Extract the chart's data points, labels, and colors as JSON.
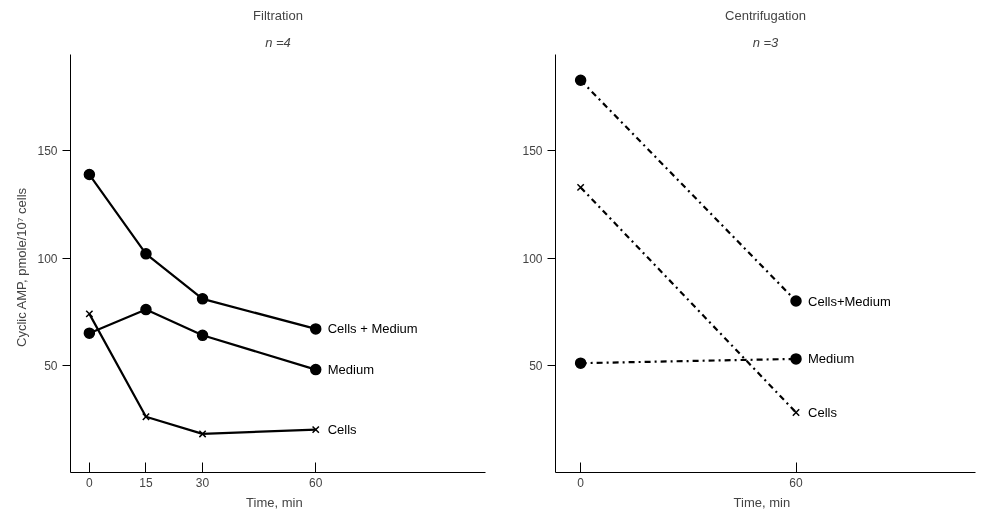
{
  "chart_data": [
    {
      "type": "line",
      "title": "Filtration",
      "subtitle": "n =4",
      "xlabel": "Time,   min",
      "ylabel": "Cyclic AMP,   pmole/10⁷ cells",
      "x": [
        0,
        15,
        30,
        60
      ],
      "xlim": [
        -5,
        105
      ],
      "ylim": [
        0,
        195
      ],
      "xticks": [
        0,
        15,
        30,
        60
      ],
      "yticks": [
        50,
        100,
        150
      ],
      "grid": false,
      "line_style": "solid",
      "series": [
        {
          "name": "Cells + Medium",
          "color": "#000000",
          "marker": "circle",
          "values": [
            139,
            102,
            81,
            67
          ]
        },
        {
          "name": "Medium",
          "color": "#000000",
          "marker": "circle",
          "values": [
            65,
            76,
            64,
            48
          ]
        },
        {
          "name": "Cells",
          "color": "#000000",
          "marker": "cross",
          "values": [
            74,
            26,
            18,
            20
          ]
        }
      ]
    },
    {
      "type": "line",
      "title": "Centrifugation",
      "subtitle": "n =3",
      "xlabel": "Time,   min",
      "x": [
        0,
        60
      ],
      "xlim": [
        -7,
        110
      ],
      "ylim": [
        0,
        195
      ],
      "xticks": [
        0,
        60
      ],
      "yticks": [
        50,
        100,
        150
      ],
      "grid": false,
      "line_style": "dashdot",
      "series": [
        {
          "name": "Cells+Medium",
          "color": "#000000",
          "marker": "circle",
          "values": [
            183,
            80
          ]
        },
        {
          "name": "Medium",
          "color": "#000000",
          "marker": "circle",
          "values": [
            51,
            53
          ]
        },
        {
          "name": "Cells",
          "color": "#000000",
          "marker": "cross",
          "values": [
            133,
            28
          ]
        }
      ]
    }
  ]
}
